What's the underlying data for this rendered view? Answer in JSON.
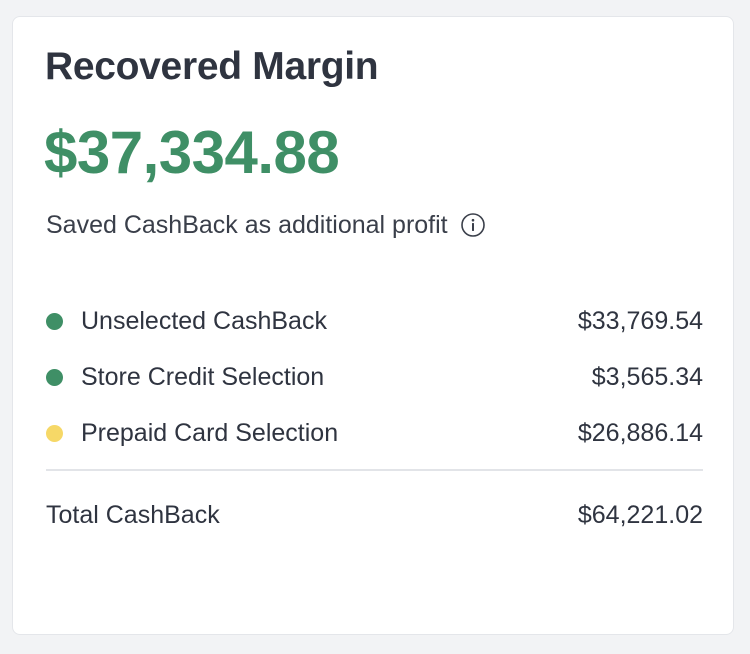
{
  "card": {
    "title": "Recovered Margin",
    "amount": "$37,334.88",
    "subtitle": "Saved CashBack as additional profit",
    "info_icon": "info-icon",
    "colors": {
      "amount": "#3f8f66",
      "green_dot": "#3f8f66",
      "yellow_dot": "#f6d867"
    },
    "rows": [
      {
        "label": "Unselected CashBack",
        "value": "$33,769.54",
        "dot_color": "#3f8f66"
      },
      {
        "label": "Store Credit Selection",
        "value": "$3,565.34",
        "dot_color": "#3f8f66"
      },
      {
        "label": "Prepaid Card Selection",
        "value": "$26,886.14",
        "dot_color": "#f6d867"
      }
    ],
    "total": {
      "label": "Total CashBack",
      "value": "$64,221.02"
    }
  }
}
